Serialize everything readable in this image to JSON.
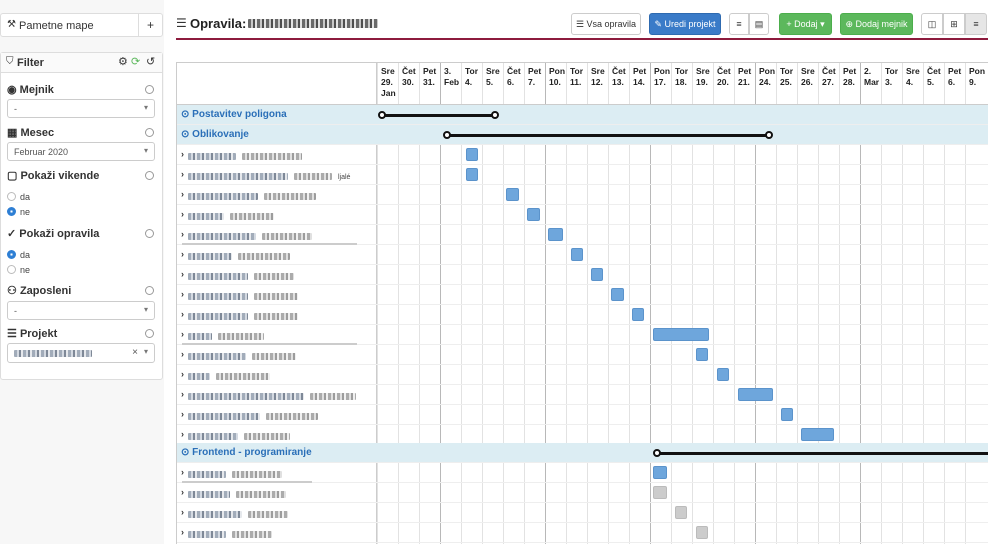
{
  "sidebar": {
    "smart_maps": "Pametne mape",
    "add": "+",
    "filter": "Filter",
    "milestone": {
      "label": "Mejnik",
      "value": "-"
    },
    "month": {
      "label": "Mesec",
      "value": "Februar 2020"
    },
    "weekends": {
      "label": "Pokaži vikende",
      "opt_yes": "da",
      "opt_no": "ne",
      "selected": "ne"
    },
    "tasks": {
      "label": "Pokaži opravila",
      "opt_yes": "da",
      "opt_no": "ne",
      "selected": "da"
    },
    "employees": {
      "label": "Zaposleni",
      "value": "-"
    },
    "project": {
      "label": "Projekt",
      "clear": "×"
    }
  },
  "toolbar": {
    "title": "Opravila:",
    "all_tasks": "Vsa opravila",
    "edit_project": "Uredi projekt",
    "add": "Dodaj",
    "add_milestone": "Dodaj mejnik"
  },
  "gantt": {
    "days": [
      {
        "d": "Sre",
        "n": "29.",
        "m": "Jan"
      },
      {
        "d": "Čet",
        "n": "30."
      },
      {
        "d": "Pet",
        "n": "31."
      },
      {
        "d": "3.",
        "n": "Feb"
      },
      {
        "d": "Tor",
        "n": "4."
      },
      {
        "d": "Sre",
        "n": "5."
      },
      {
        "d": "Čet",
        "n": "6."
      },
      {
        "d": "Pet",
        "n": "7."
      },
      {
        "d": "Pon",
        "n": "10."
      },
      {
        "d": "Tor",
        "n": "11."
      },
      {
        "d": "Sre",
        "n": "12."
      },
      {
        "d": "Čet",
        "n": "13."
      },
      {
        "d": "Pet",
        "n": "14."
      },
      {
        "d": "Pon",
        "n": "17."
      },
      {
        "d": "Tor",
        "n": "18."
      },
      {
        "d": "Sre",
        "n": "19."
      },
      {
        "d": "Čet",
        "n": "20."
      },
      {
        "d": "Pet",
        "n": "21."
      },
      {
        "d": "Pon",
        "n": "24."
      },
      {
        "d": "Tor",
        "n": "25."
      },
      {
        "d": "Sre",
        "n": "26."
      },
      {
        "d": "Čet",
        "n": "27."
      },
      {
        "d": "Pet",
        "n": "28."
      },
      {
        "d": "2.",
        "n": "Mar"
      },
      {
        "d": "Tor",
        "n": "3."
      },
      {
        "d": "Sre",
        "n": "4."
      },
      {
        "d": "Čet",
        "n": "5."
      },
      {
        "d": "Pet",
        "n": "6."
      },
      {
        "d": "Pon",
        "n": "9."
      }
    ],
    "groups": {
      "g1": "Postavitev poligona",
      "g2": "Oblikovanje",
      "g3": "Frontend - programiranje"
    },
    "task_suffix": "ljalé"
  }
}
